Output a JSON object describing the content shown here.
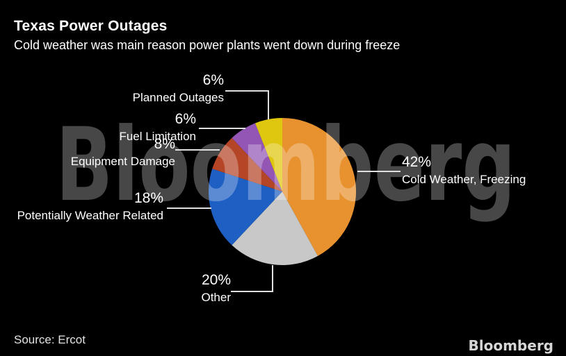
{
  "header": {
    "title": "Texas Power Outages",
    "subtitle": "Cold weather was main reason power plants went down during freeze"
  },
  "watermark_text": "Bloomberg",
  "footer": {
    "source_label": "Source: Ercot",
    "brand_logo": "Bloomberg"
  },
  "colors": {
    "background": "#000000",
    "text": "#FFFFFF",
    "leader_line": "#E0E0E0",
    "watermark": "rgba(255,255,255,0.28)"
  },
  "chart_data": {
    "type": "pie",
    "title": "Texas Power Outages",
    "subtitle": "Cold weather was main reason power plants went down during freeze",
    "source": "Ercot",
    "start_angle_deg": 0,
    "direction": "clockwise",
    "legend_position": "callout-labels",
    "slices": [
      {
        "label": "Cold Weather, Freezing",
        "pct_label": "42%",
        "value": 42,
        "color": "#E8922F"
      },
      {
        "label": "Other",
        "pct_label": "20%",
        "value": 20,
        "color": "#C8C8C8"
      },
      {
        "label": "Potentially Weather Related",
        "pct_label": "18%",
        "value": 18,
        "color": "#1E5FC4"
      },
      {
        "label": "Equipment Damage",
        "pct_label": "8%",
        "value": 8,
        "color": "#B54527"
      },
      {
        "label": "Fuel Limitation",
        "pct_label": "6%",
        "value": 6,
        "color": "#9456B4"
      },
      {
        "label": "Planned Outages",
        "pct_label": "6%",
        "value": 6,
        "color": "#DFC70F"
      }
    ]
  }
}
